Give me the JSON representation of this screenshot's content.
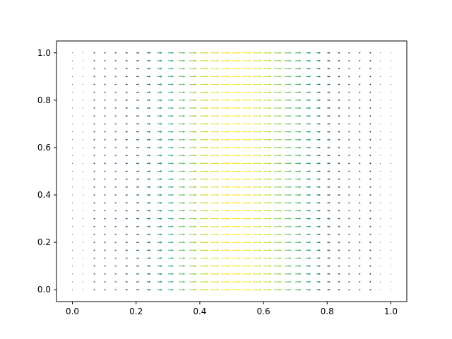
{
  "chart_data": {
    "type": "quiver",
    "title": "",
    "xlabel": "",
    "ylabel": "",
    "xlim": [
      -0.05,
      1.05
    ],
    "ylim": [
      -0.05,
      1.05
    ],
    "grid": false,
    "legend": "none",
    "x_ticks": [
      "0.0",
      "0.2",
      "0.4",
      "0.6",
      "0.8",
      "1.0"
    ],
    "y_ticks": [
      "0.0",
      "0.2",
      "0.4",
      "0.6",
      "0.8",
      "1.0"
    ],
    "field": {
      "x_start": 0.0,
      "x_end": 1.0,
      "nx": 31,
      "y_start": 0.0,
      "y_end": 1.0,
      "ny": 31,
      "u_expression": "sin(pi*x)^2",
      "v_expression": "0",
      "direction": "positive-x"
    },
    "colormap": [
      "#440154",
      "#3b528b",
      "#21918c",
      "#5ec962",
      "#fde725"
    ]
  }
}
